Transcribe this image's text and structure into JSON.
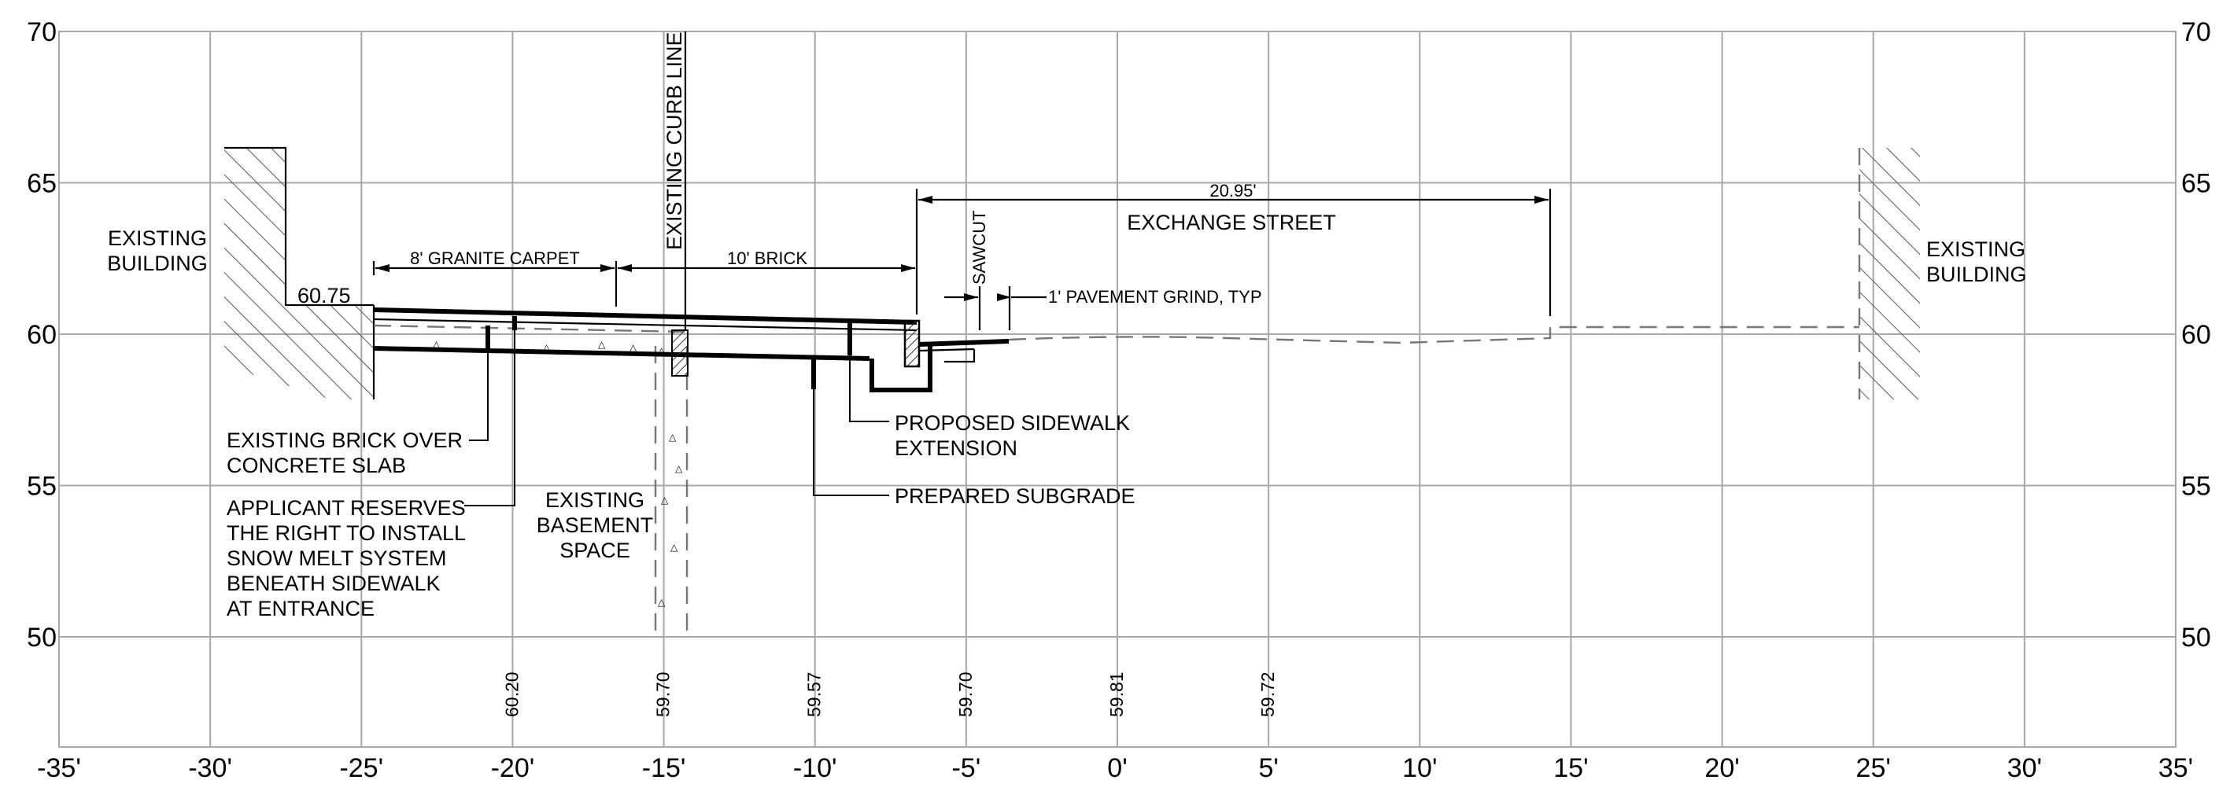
{
  "axes": {
    "x_ticks": [
      "-35'",
      "-30'",
      "-25'",
      "-20'",
      "-15'",
      "-10'",
      "-5'",
      "0'",
      "5'",
      "10'",
      "15'",
      "20'",
      "25'",
      "30'",
      "35'"
    ],
    "y_ticks": [
      "70",
      "65",
      "60",
      "55",
      "50"
    ]
  },
  "labels": {
    "existing_building_left": [
      "EXISTING",
      "BUILDING"
    ],
    "existing_building_right": [
      "EXISTING",
      "BUILDING"
    ],
    "existing_curb_line": "EXISTING CURB LINE",
    "exchange_street": "EXCHANGE STREET",
    "sawcut": "SAWCUT",
    "pavement_grind": "1' PAVEMENT GRIND, TYP",
    "granite_carpet": "8' GRANITE CARPET",
    "brick": "10' BRICK",
    "street_width": "20.95'",
    "building_elev": "60.75",
    "existing_brick": [
      "EXISTING BRICK OVER",
      "CONCRETE SLAB"
    ],
    "snow_melt": [
      "APPLICANT RESERVES",
      "THE RIGHT TO INSTALL",
      "SNOW MELT SYSTEM",
      "BENEATH SIDEWALK",
      "AT ENTRANCE"
    ],
    "basement": [
      "EXISTING",
      "BASEMENT",
      "SPACE"
    ],
    "proposed_sidewalk": [
      "PROPOSED SIDEWALK",
      "EXTENSION"
    ],
    "prepared_subgrade": "PREPARED SUBGRADE"
  },
  "elevations": [
    {
      "x": -20,
      "value": "60.20"
    },
    {
      "x": -15,
      "value": "59.70"
    },
    {
      "x": -10,
      "value": "59.57"
    },
    {
      "x": -5,
      "value": "59.70"
    },
    {
      "x": 0,
      "value": "59.81"
    },
    {
      "x": 5,
      "value": "59.72"
    }
  ]
}
